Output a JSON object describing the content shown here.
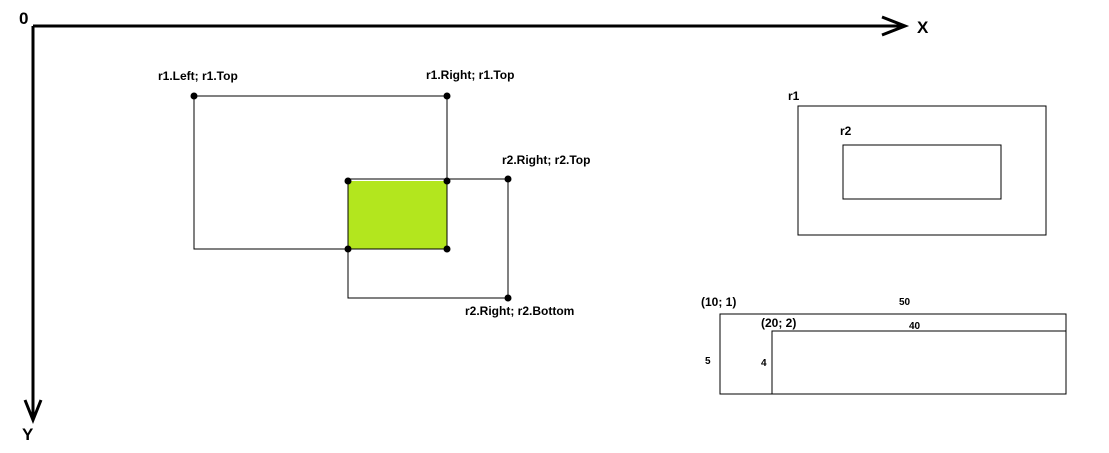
{
  "axes": {
    "origin": "0",
    "x": "X",
    "y": "Y"
  },
  "intersection": {
    "fill": "#b3e61e",
    "labels": {
      "r1_left_top": "r1.Left; r1.Top",
      "r1_right_top": "r1.Right; r1.Top",
      "r2_right_top": "r2.Right; r2.Top",
      "r2_right_bottom": "r2.Right; r2.Bottom"
    }
  },
  "containment": {
    "outer": "r1",
    "inner": "r2"
  },
  "dimensions": {
    "outer_origin": "(10; 1)",
    "outer_width": "50",
    "outer_height": "5",
    "inner_origin": "(20; 2)",
    "inner_width": "40",
    "inner_height": "4"
  }
}
